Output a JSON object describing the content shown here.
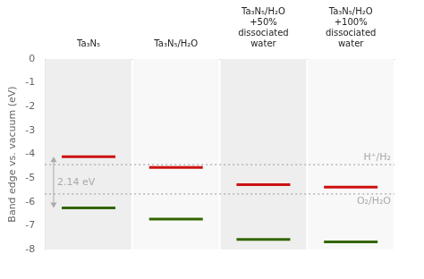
{
  "chart_data": {
    "type": "line",
    "marker": "dash",
    "line_style": "none",
    "ylabel": "Band edge vs. vacuum (eV)",
    "categories": [
      "Ta₃N₅",
      "Ta₃N₅/H₂O",
      "Ta₃N₅/H₂O\n+50%\ndissociated\nwater",
      "Ta₃N₅/H₂O\n+100%\ndissociated\nwater"
    ],
    "series": [
      {
        "color": "#cc1111",
        "values": [
          -4.1,
          -4.55,
          -5.28,
          -5.38
        ]
      },
      {
        "color": "#336600",
        "values": [
          -6.25,
          -6.72,
          -7.58,
          -7.68
        ]
      }
    ],
    "ylim": [
      -8,
      0
    ],
    "yticks": [
      0,
      -1,
      -2,
      -3,
      -4,
      -5,
      -6,
      -7,
      -8
    ],
    "grid": false,
    "reference_lines": [
      {
        "value": -4.44,
        "label": "H⁺/H₂",
        "color": "#aaaaaa"
      },
      {
        "value": -5.67,
        "label": "O₂/H₂O",
        "color": "#aaaaaa"
      }
    ],
    "arrow": {
      "category": "Ta₃N₅",
      "from": -4.1,
      "to": -6.25,
      "label": "2.14 eV",
      "color": "#aaaaaa"
    }
  }
}
